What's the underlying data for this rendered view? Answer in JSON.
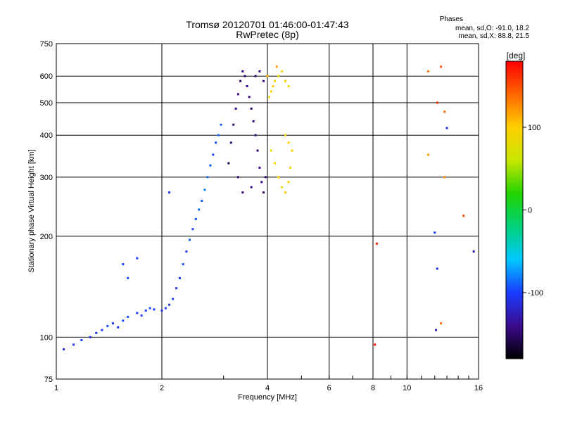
{
  "chart_data": {
    "type": "scatter",
    "title": "Tromsø 20120701 01:46:00-01:47:43",
    "subtitle": "RwPretec (8p)",
    "xlabel": "Frequency [MHz]",
    "ylabel": "Stationary phase Virtual Height [km]",
    "x_scale": "log",
    "y_scale": "log",
    "xlim": [
      1,
      16
    ],
    "ylim": [
      75,
      750
    ],
    "x_ticks": [
      1,
      2,
      4,
      6,
      8,
      10,
      16
    ],
    "x_tick_labels": [
      "1",
      "2",
      "4",
      "6",
      "8",
      "10",
      "16"
    ],
    "y_ticks": [
      75,
      100,
      200,
      300,
      400,
      500,
      600,
      750
    ],
    "y_tick_labels": [
      "75",
      "100",
      "200",
      "300",
      "400",
      "500",
      "600",
      "750"
    ],
    "grid": true,
    "phases_box": {
      "title": "Phases",
      "line_o": "mean, sd,O: -91.0, 18.2",
      "line_x": "mean, sd,X:  88.8, 21.5"
    },
    "colorbar": {
      "label": "[deg]",
      "ticks": [
        100,
        0,
        -100
      ],
      "tick_labels": [
        "100",
        "0",
        "-100"
      ],
      "range": [
        -180,
        180
      ],
      "colors": [
        "#000000",
        "#3b0a8c",
        "#1a3cff",
        "#00c8ff",
        "#00d27a",
        "#22d400",
        "#c8e600",
        "#ffd000",
        "#ff6600",
        "#ff0000"
      ]
    },
    "series": [
      {
        "points": [
          [
            1.05,
            92,
            -110
          ],
          [
            1.12,
            95,
            -105
          ],
          [
            1.18,
            98,
            -100
          ],
          [
            1.25,
            100,
            -105
          ],
          [
            1.3,
            103,
            -110
          ],
          [
            1.35,
            105,
            -100
          ],
          [
            1.4,
            108,
            -95
          ],
          [
            1.45,
            110,
            -105
          ],
          [
            1.5,
            107,
            -110
          ],
          [
            1.55,
            112,
            -100
          ],
          [
            1.6,
            115,
            -95
          ],
          [
            1.7,
            118,
            -100
          ],
          [
            1.75,
            116,
            -105
          ],
          [
            1.8,
            120,
            -100
          ],
          [
            1.85,
            122,
            -95
          ],
          [
            1.9,
            121,
            -100
          ],
          [
            2.0,
            120,
            -105
          ],
          [
            2.05,
            122,
            -100
          ],
          [
            2.1,
            125,
            -110
          ],
          [
            2.15,
            130,
            -100
          ],
          [
            2.2,
            140,
            -105
          ],
          [
            2.25,
            150,
            -100
          ],
          [
            2.3,
            165,
            -95
          ],
          [
            2.35,
            180,
            -100
          ],
          [
            2.4,
            195,
            -90
          ],
          [
            2.45,
            210,
            -100
          ],
          [
            2.5,
            225,
            -95
          ],
          [
            2.55,
            240,
            -85
          ],
          [
            2.6,
            255,
            -90
          ],
          [
            2.65,
            275,
            -80
          ],
          [
            2.7,
            300,
            -85
          ],
          [
            2.75,
            325,
            -90
          ],
          [
            2.8,
            350,
            -100
          ],
          [
            2.85,
            380,
            -95
          ],
          [
            2.9,
            400,
            -85
          ],
          [
            2.95,
            430,
            -90
          ],
          [
            1.55,
            165,
            -100
          ],
          [
            1.6,
            150,
            -95
          ],
          [
            1.7,
            172,
            -100
          ],
          [
            2.1,
            270,
            -105
          ]
        ]
      },
      {
        "points": [
          [
            3.1,
            330,
            -150
          ],
          [
            3.15,
            380,
            -145
          ],
          [
            3.2,
            430,
            -150
          ],
          [
            3.25,
            480,
            -140
          ],
          [
            3.3,
            530,
            -145
          ],
          [
            3.35,
            580,
            -150
          ],
          [
            3.4,
            620,
            -145
          ],
          [
            3.45,
            600,
            -150
          ],
          [
            3.5,
            560,
            -140
          ],
          [
            3.55,
            520,
            -145
          ],
          [
            3.6,
            480,
            -150
          ],
          [
            3.65,
            440,
            -140
          ],
          [
            3.7,
            400,
            -145
          ],
          [
            3.75,
            360,
            -150
          ],
          [
            3.8,
            320,
            -140
          ],
          [
            3.85,
            290,
            -145
          ],
          [
            3.9,
            270,
            -150
          ],
          [
            3.95,
            300,
            -145
          ],
          [
            3.3,
            300,
            -150
          ],
          [
            3.4,
            270,
            -145
          ],
          [
            3.6,
            280,
            -140
          ],
          [
            3.7,
            600,
            -150
          ],
          [
            3.8,
            620,
            -145
          ],
          [
            3.9,
            580,
            -140
          ]
        ]
      },
      {
        "points": [
          [
            4.05,
            520,
            90
          ],
          [
            4.1,
            540,
            95
          ],
          [
            4.15,
            560,
            100
          ],
          [
            4.2,
            580,
            90
          ],
          [
            4.3,
            600,
            85
          ],
          [
            4.4,
            620,
            95
          ],
          [
            4.5,
            580,
            100
          ],
          [
            4.6,
            560,
            90
          ],
          [
            4.2,
            330,
            95
          ],
          [
            4.3,
            300,
            100
          ],
          [
            4.4,
            280,
            90
          ],
          [
            4.5,
            270,
            95
          ],
          [
            4.6,
            290,
            100
          ],
          [
            4.65,
            320,
            90
          ],
          [
            4.7,
            360,
            95
          ],
          [
            4.6,
            380,
            100
          ],
          [
            4.5,
            400,
            90
          ],
          [
            4.1,
            360,
            85
          ],
          [
            4.0,
            600,
            110
          ],
          [
            4.25,
            640,
            120
          ]
        ]
      },
      {
        "points": [
          [
            8.2,
            190,
            170
          ],
          [
            8.1,
            95,
            175
          ],
          [
            11.5,
            620,
            135
          ],
          [
            12.5,
            640,
            150
          ],
          [
            12.2,
            500,
            160
          ],
          [
            12.8,
            470,
            140
          ],
          [
            13.0,
            420,
            -110
          ],
          [
            12.8,
            300,
            130
          ],
          [
            12.0,
            205,
            -100
          ],
          [
            12.2,
            160,
            -105
          ],
          [
            12.5,
            110,
            140
          ],
          [
            12.1,
            105,
            -120
          ],
          [
            14.5,
            230,
            150
          ],
          [
            15.5,
            180,
            -130
          ],
          [
            11.5,
            350,
            120
          ]
        ]
      }
    ]
  }
}
